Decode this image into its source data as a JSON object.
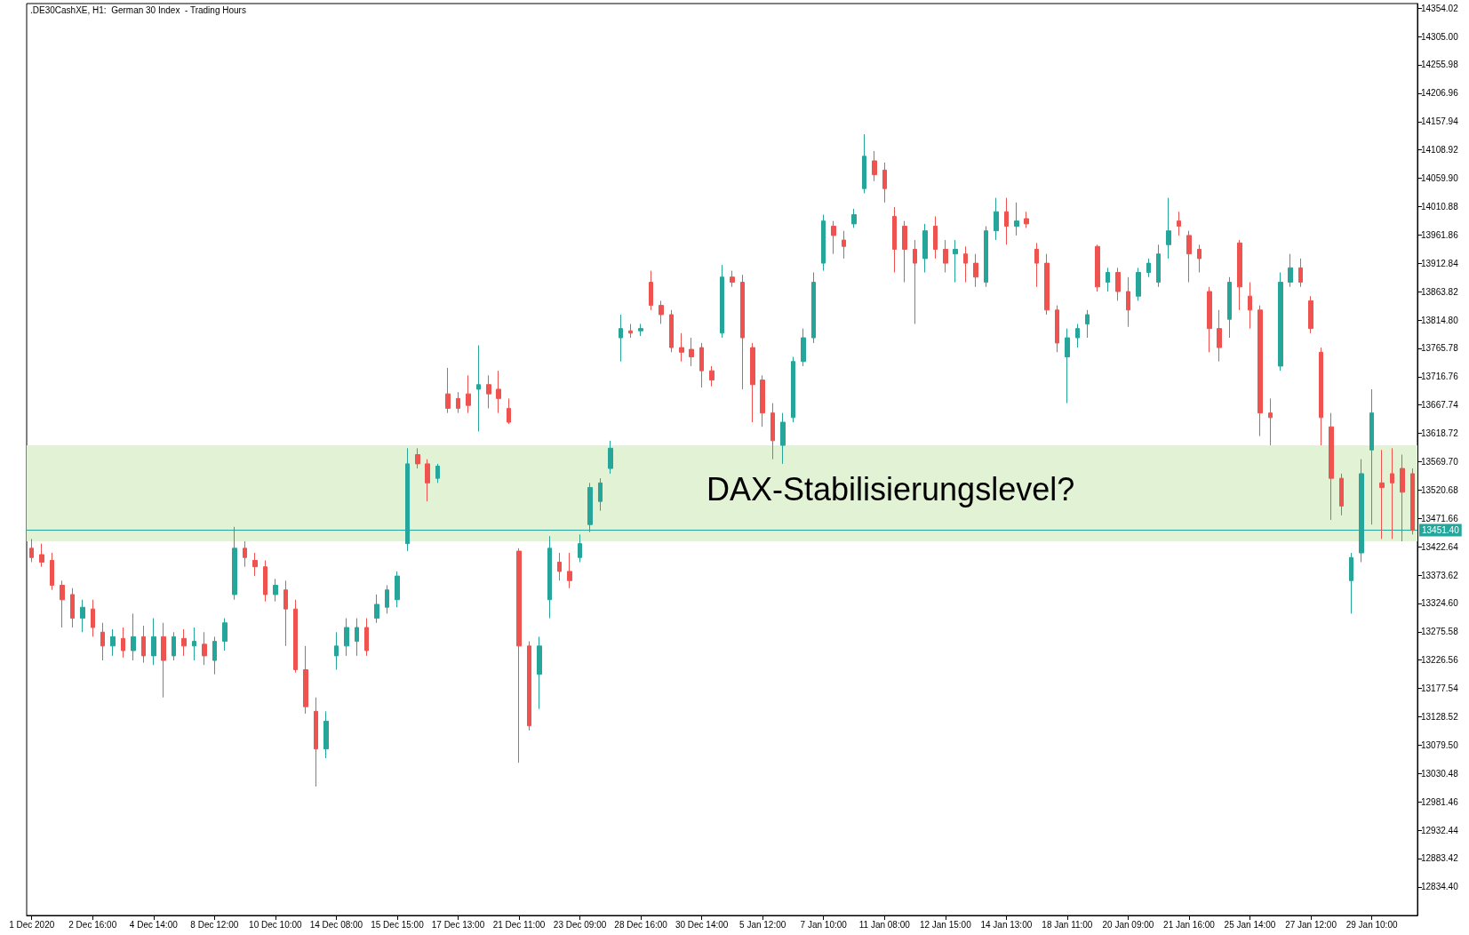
{
  "chart_data": {
    "type": "candlestick",
    "title": ".DE30CashXE, H1:  German 30 Index  - Trading Hours",
    "annotations": [
      "DAX-Stabilisierungslevel?"
    ],
    "colors": [
      "#ef5350",
      "#ef5350",
      "#ef5350",
      "#ef5350",
      "#ef5350",
      "#26a69a",
      "#ef5350",
      "#ef5350",
      "#26a69a",
      "#ef5350",
      "#26a69a",
      "#ef5350",
      "#26a69a",
      "#ef5350",
      "#26a69a",
      "#ef5350",
      "#26a69a",
      "#ef5350",
      "#26a69a",
      "#26a69a",
      "#26a69a",
      "#ef5350",
      "#ef5350",
      "#ef5350",
      "#26a69a",
      "#ef5350",
      "#ef5350",
      "#ef5350",
      "#ef5350",
      "#26a69a",
      "#26a69a",
      "#26a69a",
      "#26a69a",
      "#ef5350",
      "#26a69a",
      "#26a69a",
      "#26a69a",
      "#26a69a",
      "#ef5350",
      "#ef5350",
      "#26a69a",
      "#ef5350",
      "#ef5350",
      "#ef5350",
      "#26a69a",
      "#ef5350",
      "#ef5350",
      "#ef5350",
      "#ef5350",
      "#ef5350",
      "#26a69a",
      "#26a69a",
      "#ef5350",
      "#ef5350",
      "#26a69a",
      "#26a69a",
      "#26a69a",
      "#26a69a",
      "#26a69a",
      "#ef5350",
      "#26a69a",
      "#ef5350",
      "#ef5350",
      "#ef5350",
      "#ef5350",
      "#ef5350",
      "#ef5350",
      "#ef5350",
      "#26a69a",
      "#ef5350",
      "#ef5350",
      "#ef5350",
      "#ef5350",
      "#ef5350",
      "#26a69a",
      "#26a69a",
      "#26a69a",
      "#26a69a",
      "#26a69a",
      "#ef5350",
      "#ef5350",
      "#26a69a",
      "#26a69a",
      "#ef5350",
      "#ef5350",
      "#ef5350",
      "#ef5350",
      "#ef5350",
      "#26a69a",
      "#ef5350",
      "#ef5350",
      "#26a69a",
      "#ef5350",
      "#ef5350",
      "#26a69a",
      "#26a69a",
      "#ef5350",
      "#26a69a",
      "#ef5350",
      "#ef5350",
      "#ef5350",
      "#ef5350",
      "#26a69a",
      "#26a69a",
      "#26a69a",
      "#ef5350",
      "#26a69a",
      "#ef5350",
      "#ef5350",
      "#26a69a",
      "#26a69a",
      "#26a69a",
      "#26a69a",
      "#ef5350",
      "#ef5350",
      "#ef5350",
      "#ef5350",
      "#ef5350",
      "#26a69a",
      "#ef5350",
      "#ef5350",
      "#ef5350",
      "#ef5350",
      "#26a69a",
      "#26a69a",
      "#ef5350",
      "#ef5350",
      "#ef5350",
      "#ef5350",
      "#ef5350",
      "#26a69a",
      "#26a69a",
      "#26a69a",
      "#ef5350",
      "#ef5350",
      "#ef5350",
      "#ef5350"
    ],
    "categories": [
      "1 Dec 2020",
      null,
      null,
      null,
      null,
      null,
      "2 Dec 16:00",
      null,
      null,
      null,
      null,
      null,
      "4 Dec 14:00",
      null,
      null,
      null,
      null,
      null,
      "8 Dec 12:00",
      null,
      null,
      null,
      null,
      null,
      "10 Dec 10:00",
      null,
      null,
      null,
      null,
      null,
      "14 Dec 08:00",
      null,
      null,
      null,
      null,
      null,
      "15 Dec 15:00",
      null,
      null,
      null,
      null,
      null,
      "17 Dec 13:00",
      null,
      null,
      null,
      null,
      null,
      "21 Dec 11:00",
      null,
      null,
      null,
      null,
      null,
      "23 Dec 09:00",
      null,
      null,
      null,
      null,
      null,
      "28 Dec 16:00",
      null,
      null,
      null,
      null,
      null,
      "30 Dec 14:00",
      null,
      null,
      null,
      null,
      null,
      "5 Jan 12:00",
      null,
      null,
      null,
      null,
      null,
      "7 Jan 10:00",
      null,
      null,
      null,
      null,
      null,
      "11 Jan 08:00",
      null,
      null,
      null,
      null,
      null,
      "12 Jan 15:00",
      null,
      null,
      null,
      null,
      null,
      "14 Jan 13:00",
      null,
      null,
      null,
      null,
      null,
      "18 Jan 11:00",
      null,
      null,
      null,
      null,
      null,
      "20 Jan 09:00",
      null,
      null,
      null,
      null,
      null,
      "21 Jan 16:00",
      null,
      null,
      null,
      null,
      null,
      "25 Jan 14:00",
      null,
      null,
      null,
      null,
      null,
      "27 Jan 12:00",
      null,
      null,
      null,
      null,
      null,
      "29 Jan 10:00",
      null,
      null,
      null,
      null
    ],
    "ohlc": [
      [
        13420,
        13436,
        13396,
        13404
      ],
      [
        13409,
        13428,
        13388,
        13396
      ],
      [
        13399,
        13412,
        13348,
        13356
      ],
      [
        13356,
        13364,
        13283,
        13331
      ],
      [
        13340,
        13351,
        13283,
        13299
      ],
      [
        13299,
        13331,
        13275,
        13318
      ],
      [
        13315,
        13331,
        13267,
        13283
      ],
      [
        13275,
        13291,
        13226,
        13251
      ],
      [
        13251,
        13280,
        13234,
        13267
      ],
      [
        13264,
        13283,
        13231,
        13243
      ],
      [
        13243,
        13307,
        13226,
        13267
      ],
      [
        13267,
        13286,
        13222,
        13234
      ],
      [
        13234,
        13299,
        13218,
        13267
      ],
      [
        13267,
        13291,
        13162,
        13226
      ],
      [
        13234,
        13275,
        13226,
        13267
      ],
      [
        13264,
        13280,
        13234,
        13251
      ],
      [
        13251,
        13283,
        13226,
        13259
      ],
      [
        13254,
        13275,
        13218,
        13234
      ],
      [
        13226,
        13267,
        13202,
        13259
      ],
      [
        13259,
        13299,
        13243,
        13291
      ],
      [
        13340,
        13457,
        13331,
        13420
      ],
      [
        13420,
        13432,
        13388,
        13404
      ],
      [
        13399,
        13412,
        13372,
        13388
      ],
      [
        13388,
        13399,
        13328,
        13340
      ],
      [
        13340,
        13367,
        13328,
        13356
      ],
      [
        13348,
        13364,
        13251,
        13315
      ],
      [
        13315,
        13331,
        13205,
        13210
      ],
      [
        13210,
        13251,
        13134,
        13146
      ],
      [
        13138,
        13162,
        13008,
        13073
      ],
      [
        13073,
        13138,
        13057,
        13121
      ],
      [
        13234,
        13275,
        13210,
        13251
      ],
      [
        13251,
        13299,
        13234,
        13283
      ],
      [
        13259,
        13299,
        13234,
        13283
      ],
      [
        13283,
        13299,
        13234,
        13243
      ],
      [
        13299,
        13340,
        13291,
        13323
      ],
      [
        13318,
        13356,
        13307,
        13348
      ],
      [
        13331,
        13380,
        13318,
        13372
      ],
      [
        13428,
        13593,
        13415,
        13566
      ],
      [
        13582,
        13593,
        13558,
        13566
      ],
      [
        13566,
        13574,
        13501,
        13533
      ],
      [
        13541,
        13566,
        13533,
        13562
      ],
      [
        13687,
        13732,
        13654,
        13662
      ],
      [
        13679,
        13690,
        13654,
        13662
      ],
      [
        13687,
        13719,
        13654,
        13667
      ],
      [
        13695,
        13771,
        13622,
        13703
      ],
      [
        13703,
        13719,
        13662,
        13687
      ],
      [
        13695,
        13727,
        13654,
        13679
      ],
      [
        13662,
        13679,
        13635,
        13638
      ],
      [
        13415,
        13420,
        13049,
        13251
      ],
      [
        13251,
        13259,
        13105,
        13113
      ],
      [
        13202,
        13267,
        13142,
        13251
      ],
      [
        13331,
        13441,
        13299,
        13420
      ],
      [
        13396,
        13412,
        13364,
        13380
      ],
      [
        13380,
        13412,
        13351,
        13364
      ],
      [
        13404,
        13444,
        13396,
        13428
      ],
      [
        13461,
        13533,
        13448,
        13525
      ],
      [
        13501,
        13541,
        13485,
        13533
      ],
      [
        13558,
        13606,
        13549,
        13593
      ],
      [
        13784,
        13824,
        13743,
        13800
      ],
      [
        13796,
        13808,
        13784,
        13792
      ],
      [
        13796,
        13808,
        13787,
        13800
      ],
      [
        13880,
        13900,
        13832,
        13840
      ],
      [
        13840,
        13848,
        13808,
        13824
      ],
      [
        13824,
        13832,
        13759,
        13767
      ],
      [
        13767,
        13792,
        13743,
        13759
      ],
      [
        13764,
        13784,
        13735,
        13751
      ],
      [
        13767,
        13775,
        13698,
        13727
      ],
      [
        13727,
        13735,
        13700,
        13711
      ],
      [
        13792,
        13910,
        13784,
        13889
      ],
      [
        13889,
        13900,
        13872,
        13880
      ],
      [
        13880,
        13893,
        13695,
        13784
      ],
      [
        13767,
        13775,
        13638,
        13703
      ],
      [
        13711,
        13719,
        13630,
        13654
      ],
      [
        13654,
        13671,
        13574,
        13606
      ],
      [
        13598,
        13654,
        13566,
        13638
      ],
      [
        13646,
        13751,
        13638,
        13743
      ],
      [
        13743,
        13800,
        13735,
        13784
      ],
      [
        13784,
        13897,
        13775,
        13880
      ],
      [
        13913,
        13997,
        13900,
        13986
      ],
      [
        13977,
        13986,
        13929,
        13961
      ],
      [
        13953,
        13969,
        13921,
        13942
      ],
      [
        13981,
        14007,
        13974,
        13997
      ],
      [
        14042,
        14136,
        14034,
        14098
      ],
      [
        14090,
        14107,
        14055,
        14066
      ],
      [
        14074,
        14087,
        14018,
        14042
      ],
      [
        13994,
        14010,
        13897,
        13937
      ],
      [
        13977,
        13986,
        13880,
        13937
      ],
      [
        13937,
        13953,
        13808,
        13913
      ],
      [
        13921,
        13981,
        13897,
        13969
      ],
      [
        13977,
        13994,
        13921,
        13937
      ],
      [
        13937,
        13953,
        13897,
        13913
      ],
      [
        13929,
        13953,
        13880,
        13937
      ],
      [
        13929,
        13942,
        13880,
        13913
      ],
      [
        13913,
        13929,
        13872,
        13889
      ],
      [
        13880,
        13977,
        13872,
        13969
      ],
      [
        13969,
        14026,
        13953,
        14002
      ],
      [
        14002,
        14026,
        13945,
        13977
      ],
      [
        13977,
        14018,
        13961,
        13986
      ],
      [
        13990,
        14002,
        13974,
        13981
      ],
      [
        13937,
        13948,
        13872,
        13913
      ],
      [
        13913,
        13929,
        13824,
        13832
      ],
      [
        13832,
        13840,
        13759,
        13775
      ],
      [
        13751,
        13800,
        13671,
        13784
      ],
      [
        13784,
        13808,
        13767,
        13800
      ],
      [
        13808,
        13832,
        13784,
        13824
      ],
      [
        13942,
        13945,
        13864,
        13872
      ],
      [
        13880,
        13905,
        13864,
        13897
      ],
      [
        13897,
        13905,
        13848,
        13864
      ],
      [
        13864,
        13889,
        13803,
        13832
      ],
      [
        13856,
        13905,
        13848,
        13897
      ],
      [
        13897,
        13921,
        13889,
        13913
      ],
      [
        13880,
        13945,
        13872,
        13929
      ],
      [
        13945,
        14026,
        13921,
        13969
      ],
      [
        13986,
        14002,
        13961,
        13977
      ],
      [
        13961,
        13969,
        13880,
        13929
      ],
      [
        13937,
        13945,
        13897,
        13921
      ],
      [
        13864,
        13872,
        13759,
        13800
      ],
      [
        13800,
        13832,
        13743,
        13767
      ],
      [
        13816,
        13889,
        13784,
        13880
      ],
      [
        13948,
        13953,
        13832,
        13872
      ],
      [
        13856,
        13880,
        13800,
        13832
      ],
      [
        13832,
        13840,
        13614,
        13654
      ],
      [
        13654,
        13679,
        13598,
        13646
      ],
      [
        13735,
        13897,
        13727,
        13880
      ],
      [
        13880,
        13929,
        13872,
        13905
      ],
      [
        13905,
        13921,
        13872,
        13880
      ],
      [
        13848,
        13856,
        13792,
        13800
      ],
      [
        13759,
        13767,
        13598,
        13646
      ],
      [
        13630,
        13654,
        13469,
        13541
      ],
      [
        13541,
        13549,
        13477,
        13493
      ],
      [
        13364,
        13412,
        13307,
        13404
      ],
      [
        13412,
        13574,
        13396,
        13549
      ],
      [
        13590,
        13695,
        13461,
        13654
      ],
      [
        13533,
        13590,
        13436,
        13525
      ],
      [
        13549,
        13593,
        13436,
        13533
      ],
      [
        13558,
        13582,
        13432,
        13517
      ],
      [
        13549,
        13558,
        13444,
        13451
      ]
    ],
    "ylim": [
      12785,
      14362
    ],
    "yticks": [
      {
        "value": 12834.4,
        "label": "12834.40"
      },
      {
        "value": 12883.42,
        "label": "12883.42"
      },
      {
        "value": 12932.44,
        "label": "12932.44"
      },
      {
        "value": 12981.46,
        "label": "12981.46"
      },
      {
        "value": 13030.48,
        "label": "13030.48"
      },
      {
        "value": 13079.5,
        "label": "13079.50"
      },
      {
        "value": 13128.52,
        "label": "13128.52"
      },
      {
        "value": 13177.54,
        "label": "13177.54"
      },
      {
        "value": 13226.56,
        "label": "13226.56"
      },
      {
        "value": 13275.58,
        "label": "13275.58"
      },
      {
        "value": 13324.6,
        "label": "13324.60"
      },
      {
        "value": 13373.62,
        "label": "13373.62"
      },
      {
        "value": 13422.64,
        "label": "13422.64"
      },
      {
        "value": 13471.66,
        "label": "13471.66"
      },
      {
        "value": 13520.68,
        "label": "13520.68"
      },
      {
        "value": 13569.7,
        "label": "13569.70"
      },
      {
        "value": 13618.72,
        "label": "13618.72"
      },
      {
        "value": 13667.74,
        "label": "13667.74"
      },
      {
        "value": 13716.76,
        "label": "13716.76"
      },
      {
        "value": 13765.78,
        "label": "13765.78"
      },
      {
        "value": 13814.8,
        "label": "13814.80"
      },
      {
        "value": 13863.82,
        "label": "13863.82"
      },
      {
        "value": 13912.84,
        "label": "13912.84"
      },
      {
        "value": 13961.86,
        "label": "13961.86"
      },
      {
        "value": 14010.88,
        "label": "14010.88"
      },
      {
        "value": 14059.9,
        "label": "14059.90"
      },
      {
        "value": 14108.92,
        "label": "14108.92"
      },
      {
        "value": 14157.94,
        "label": "14157.94"
      },
      {
        "value": 14206.96,
        "label": "14206.96"
      },
      {
        "value": 14255.98,
        "label": "14255.98"
      },
      {
        "value": 14305,
        "label": "14305.00"
      },
      {
        "value": 14354.02,
        "label": "14354.02"
      }
    ],
    "ref_lines": [
      {
        "axis": "y",
        "value": 13451.4,
        "label": "13451.40",
        "color": "#26a69a"
      }
    ],
    "bands": [
      {
        "axis": "y",
        "from": 13432,
        "to": 13598,
        "color": "#e2f2d5"
      }
    ]
  }
}
